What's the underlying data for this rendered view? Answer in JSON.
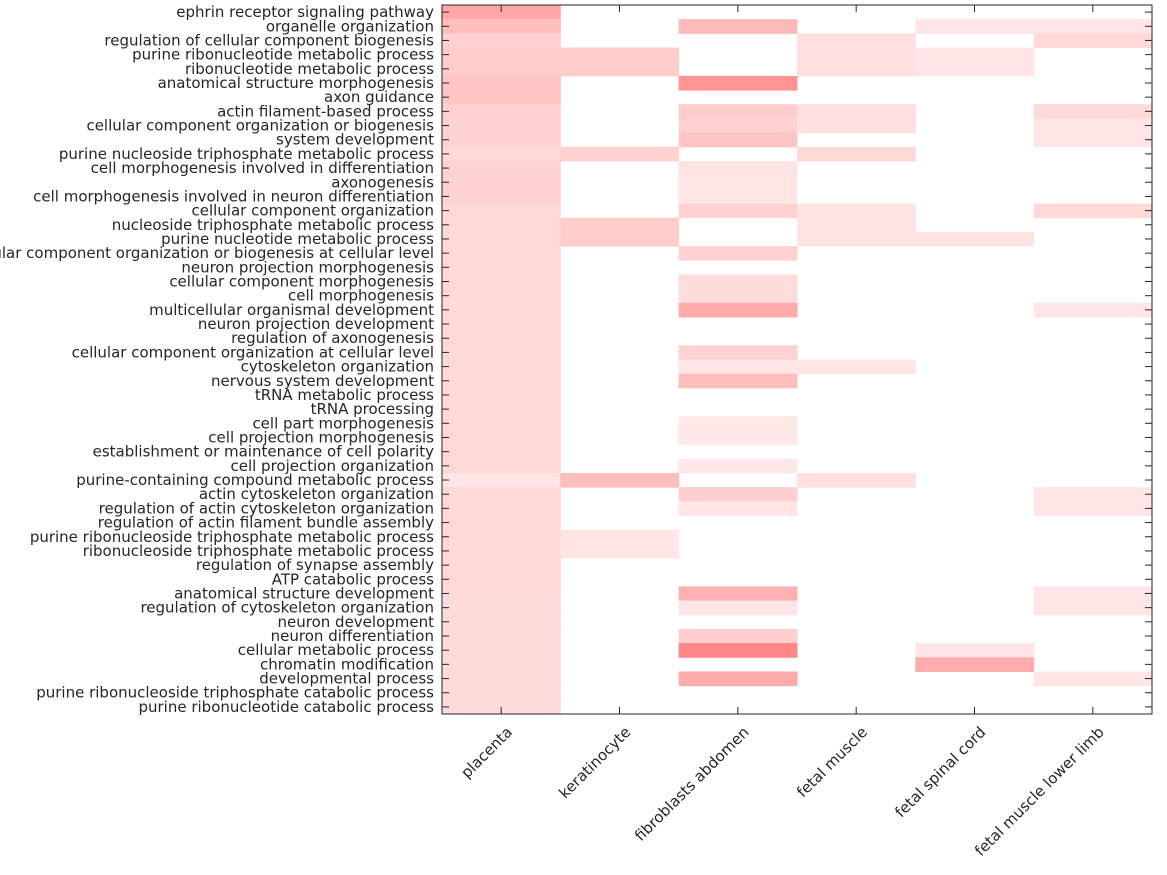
{
  "chart_data": {
    "type": "heatmap",
    "title": "",
    "xlabel": "",
    "ylabel": "",
    "grid": false,
    "colors": {
      "low": "#ffffff",
      "high": "#ff7f7f",
      "axis": "#262626"
    },
    "columns": [
      "placenta",
      "keratinocyte",
      "fibroblasts abdomen",
      "fetal muscle",
      "fetal spinal cord",
      "fetal muscle lower limb"
    ],
    "rows": [
      "ephrin receptor signaling pathway",
      "organelle organization",
      "regulation of cellular component biogenesis",
      "purine ribonucleotide metabolic process",
      "ribonucleotide metabolic process",
      "anatomical structure morphogenesis",
      "axon guidance",
      "actin filament-based process",
      "cellular component organization or biogenesis",
      "system development",
      "purine nucleoside triphosphate metabolic process",
      "cell morphogenesis involved in differentiation",
      "axonogenesis",
      "cell morphogenesis involved in neuron differentiation",
      "cellular component organization",
      "nucleoside triphosphate metabolic process",
      "purine nucleotide metabolic process",
      "cellular component organization or biogenesis at cellular level",
      "neuron projection morphogenesis",
      "cellular component morphogenesis",
      "cell morphogenesis",
      "multicellular organismal development",
      "neuron projection development",
      "regulation of axonogenesis",
      "cellular component organization at cellular level",
      "cytoskeleton organization",
      "nervous system development",
      "tRNA metabolic process",
      "tRNA processing",
      "cell part morphogenesis",
      "cell projection morphogenesis",
      "establishment or maintenance of cell polarity",
      "cell projection organization",
      "purine-containing compound metabolic process",
      "actin cytoskeleton organization",
      "regulation of actin cytoskeleton organization",
      "regulation of actin filament bundle assembly",
      "purine ribonucleoside triphosphate metabolic process",
      "ribonucleoside triphosphate metabolic process",
      "regulation of synapse assembly",
      "ATP catabolic process",
      "anatomical structure development",
      "regulation of cytoskeleton organization",
      "neuron development",
      "neuron differentiation",
      "cellular metabolic process",
      "chromatin modification",
      "developmental process",
      "purine ribonucleoside triphosphate catabolic process",
      "purine ribonucleotide catabolic process"
    ],
    "values": [
      [
        0.68,
        0,
        0,
        0,
        0,
        0
      ],
      [
        0.5,
        0,
        0.55,
        0,
        0.2,
        0.2
      ],
      [
        0.36,
        0,
        0,
        0.25,
        0,
        0.3
      ],
      [
        0.4,
        0.4,
        0,
        0.25,
        0.2,
        0
      ],
      [
        0.4,
        0.4,
        0,
        0.25,
        0.2,
        0
      ],
      [
        0.45,
        0,
        0.82,
        0,
        0,
        0
      ],
      [
        0.45,
        0,
        0,
        0,
        0,
        0
      ],
      [
        0.36,
        0,
        0.4,
        0.25,
        0,
        0.3
      ],
      [
        0.35,
        0,
        0.35,
        0.25,
        0,
        0.2
      ],
      [
        0.35,
        0,
        0.45,
        0,
        0,
        0.2
      ],
      [
        0.3,
        0.35,
        0,
        0.3,
        0,
        0
      ],
      [
        0.35,
        0,
        0.22,
        0,
        0,
        0
      ],
      [
        0.35,
        0,
        0.2,
        0,
        0,
        0
      ],
      [
        0.35,
        0,
        0.2,
        0,
        0,
        0
      ],
      [
        0.3,
        0,
        0.35,
        0.22,
        0,
        0.3
      ],
      [
        0.3,
        0.4,
        0,
        0.22,
        0,
        0
      ],
      [
        0.3,
        0.4,
        0,
        0.22,
        0.22,
        0
      ],
      [
        0.3,
        0,
        0.35,
        0,
        0,
        0
      ],
      [
        0.3,
        0,
        0,
        0,
        0,
        0
      ],
      [
        0.3,
        0,
        0.27,
        0,
        0,
        0
      ],
      [
        0.3,
        0,
        0.27,
        0,
        0,
        0
      ],
      [
        0.3,
        0,
        0.65,
        0,
        0,
        0.2
      ],
      [
        0.3,
        0,
        0,
        0,
        0,
        0
      ],
      [
        0.3,
        0,
        0,
        0,
        0,
        0
      ],
      [
        0.3,
        0,
        0.35,
        0,
        0,
        0
      ],
      [
        0.3,
        0,
        0.2,
        0.2,
        0,
        0
      ],
      [
        0.3,
        0,
        0.5,
        0,
        0,
        0
      ],
      [
        0.3,
        0,
        0,
        0,
        0,
        0
      ],
      [
        0.3,
        0,
        0,
        0,
        0,
        0
      ],
      [
        0.3,
        0,
        0.18,
        0,
        0,
        0
      ],
      [
        0.3,
        0,
        0.18,
        0,
        0,
        0
      ],
      [
        0.3,
        0,
        0,
        0,
        0,
        0
      ],
      [
        0.3,
        0,
        0.18,
        0,
        0,
        0
      ],
      [
        0.2,
        0.5,
        0,
        0.25,
        0,
        0
      ],
      [
        0.3,
        0,
        0.38,
        0,
        0,
        0.2
      ],
      [
        0.3,
        0,
        0.2,
        0,
        0,
        0.2
      ],
      [
        0.3,
        0,
        0,
        0,
        0,
        0
      ],
      [
        0.3,
        0.2,
        0,
        0,
        0,
        0
      ],
      [
        0.3,
        0.2,
        0,
        0,
        0,
        0
      ],
      [
        0.3,
        0,
        0,
        0,
        0,
        0
      ],
      [
        0.3,
        0,
        0,
        0,
        0,
        0
      ],
      [
        0.28,
        0,
        0.6,
        0,
        0,
        0.2
      ],
      [
        0.28,
        0,
        0.2,
        0,
        0,
        0.2
      ],
      [
        0.28,
        0,
        0,
        0,
        0,
        0
      ],
      [
        0.28,
        0,
        0.38,
        0,
        0,
        0
      ],
      [
        0.28,
        0,
        0.92,
        0,
        0.2,
        0
      ],
      [
        0.28,
        0,
        0,
        0,
        0.65,
        0
      ],
      [
        0.28,
        0,
        0.65,
        0,
        0,
        0.2
      ],
      [
        0.28,
        0,
        0,
        0,
        0,
        0
      ],
      [
        0.28,
        0,
        0,
        0,
        0,
        0
      ]
    ]
  }
}
